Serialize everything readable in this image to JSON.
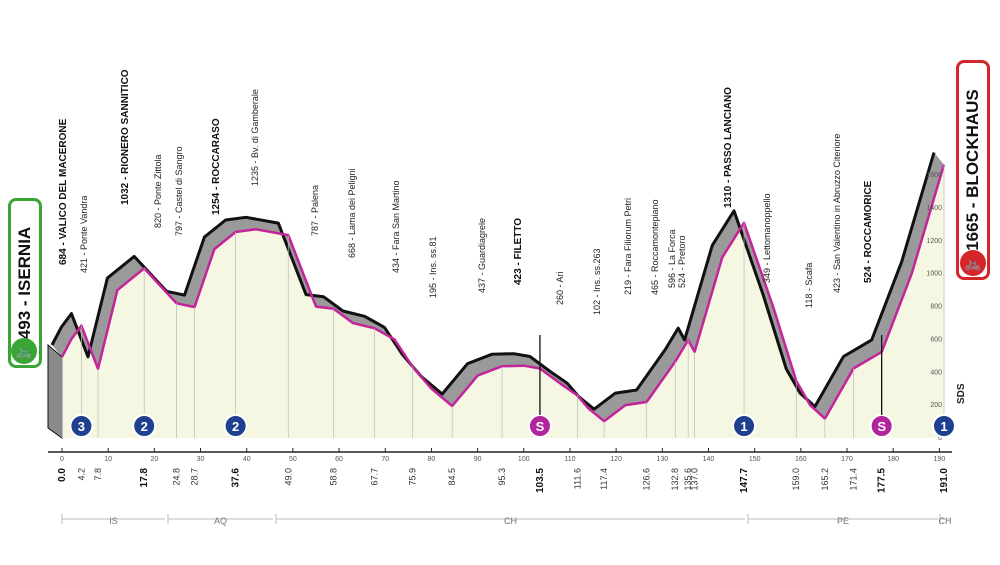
{
  "start": {
    "altitude": "493",
    "name": "ISERNIA",
    "label": "493 - ISERNIA",
    "color": "#3aa535"
  },
  "finish": {
    "altitude": "1665",
    "name": "BLOCKHAUS",
    "label": "1665 - BLOCKHAUS",
    "color": "#d4252a"
  },
  "colors": {
    "profile_fill": "#f6f7e2",
    "road": "#c4239a",
    "mountain": "#9a9a9a",
    "climb_badge": "#1f3f8f",
    "sprint_badge": "#b0249c"
  },
  "waypoints": [
    {
      "name": "684 - VALICO DEL MACERONE",
      "bold": true
    },
    {
      "name": "421 - Ponte Vandra",
      "bold": false
    },
    {
      "name": "1032 - RIONERO SANNITICO",
      "bold": true
    },
    {
      "name": "820 - Ponte Zittola",
      "bold": false
    },
    {
      "name": "797 - Castel di Sangro",
      "bold": false
    },
    {
      "name": "1254 - ROCCARASO",
      "bold": true
    },
    {
      "name": "1235 - Bv. di Gamberale",
      "bold": false
    },
    {
      "name": "787 - Palena",
      "bold": false
    },
    {
      "name": "668 - Lama dei Peligni",
      "bold": false
    },
    {
      "name": "434 - Fara San Martino",
      "bold": false
    },
    {
      "name": "195 - Ins. ss.81",
      "bold": false
    },
    {
      "name": "437 - Guardiagrele",
      "bold": false
    },
    {
      "name": "423 - FILETTO",
      "bold": true
    },
    {
      "name": "260 - Ari",
      "bold": false
    },
    {
      "name": "102 - Ins. ss.263",
      "bold": false
    },
    {
      "name": "219 - Fara Filiorum Petri",
      "bold": false
    },
    {
      "name": "465 - Roccamontepiano",
      "bold": false
    },
    {
      "name": "596 - La Forca",
      "bold": false
    },
    {
      "name": "524 - Pretoro",
      "bold": false
    },
    {
      "name": "1310 - PASSO LANCIANO",
      "bold": true
    },
    {
      "name": "349 - Lettomanoppello",
      "bold": false
    },
    {
      "name": "118 - Scafa",
      "bold": false
    },
    {
      "name": "423 - San Valentino in Abruzzo Citeriore",
      "bold": false
    },
    {
      "name": "524 - ROCCAMORICE",
      "bold": true
    }
  ],
  "km_markers": [
    "0.0",
    "4.2",
    "7.8",
    "17.8",
    "24.8",
    "28.7",
    "37.6",
    "49.0",
    "58.8",
    "67.7",
    "75.9",
    "84.5",
    "95.3",
    "103.5",
    "111.6",
    "117.4",
    "126.6",
    "132.8",
    "135.6",
    "137.0",
    "147.7",
    "159.0",
    "165.2",
    "171.4",
    "177.5",
    "191.0"
  ],
  "km_axis": [
    "0",
    "10",
    "20",
    "30",
    "40",
    "50",
    "60",
    "70",
    "80",
    "90",
    "100",
    "110",
    "120",
    "130",
    "140",
    "150",
    "160",
    "170",
    "180",
    "190"
  ],
  "alt_axis": [
    "0",
    "200",
    "400",
    "600",
    "800",
    "1000",
    "1200",
    "1400",
    "1600"
  ],
  "regions": [
    "IS",
    "AQ",
    "CH",
    "PE",
    "CH"
  ],
  "climb_badges": [
    {
      "type": "climb",
      "label": "3"
    },
    {
      "type": "climb",
      "label": "2"
    },
    {
      "type": "climb",
      "label": "2"
    },
    {
      "type": "sprint",
      "label": "S"
    },
    {
      "type": "climb",
      "label": "1"
    },
    {
      "type": "sprint",
      "label": "S"
    },
    {
      "type": "climb",
      "label": "1"
    }
  ],
  "sds_label": "SDS",
  "chart_data": {
    "type": "area",
    "xlabel": "",
    "ylabel": "",
    "xlim": [
      0,
      191
    ],
    "ylim": [
      0,
      1700
    ],
    "x": [
      0,
      2,
      4.2,
      7.8,
      12,
      17.8,
      24.8,
      28.7,
      33,
      37.6,
      42,
      49.0,
      55,
      58.8,
      63,
      67.7,
      72,
      75.9,
      80,
      84.5,
      90,
      95.3,
      100,
      103.5,
      108,
      111.6,
      114,
      117.4,
      122,
      126.6,
      132.8,
      135.6,
      137.0,
      143,
      147.7,
      154,
      159.0,
      162,
      165.2,
      171.4,
      177.5,
      184,
      191.0
    ],
    "series": [
      {
        "values": [
          493,
          600,
          684,
          421,
          900,
          1032,
          820,
          797,
          1150,
          1254,
          1270,
          1235,
          800,
          787,
          700,
          668,
          600,
          434,
          300,
          195,
          380,
          437,
          440,
          423,
          330,
          260,
          180,
          102,
          200,
          219,
          465,
          596,
          524,
          1100,
          1310,
          800,
          349,
          200,
          118,
          423,
          524,
          1000,
          1665
        ]
      }
    ]
  }
}
